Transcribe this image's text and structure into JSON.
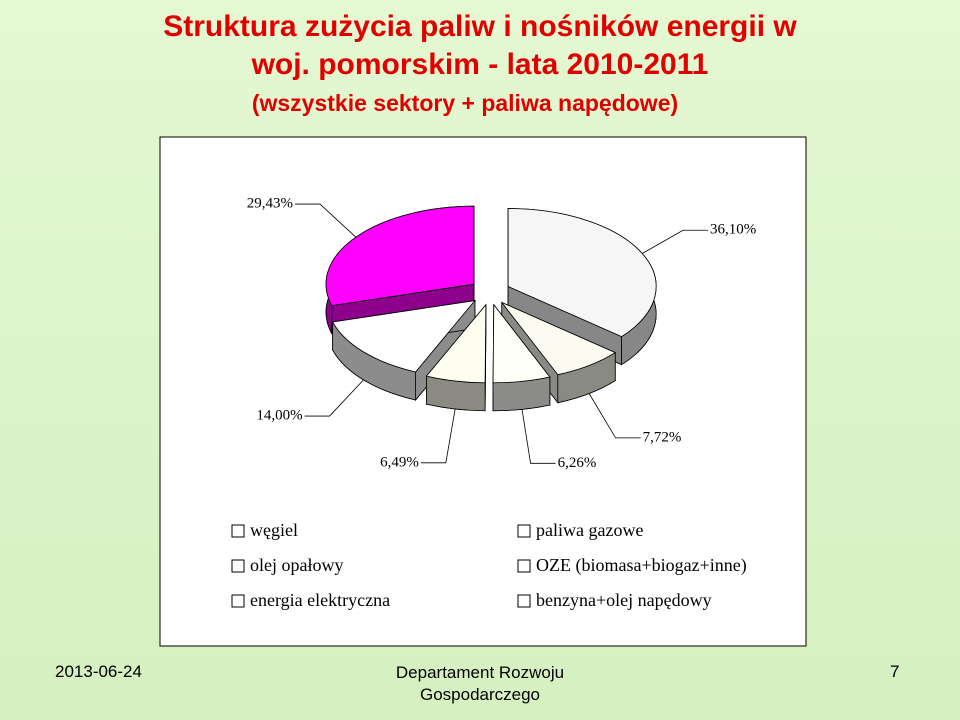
{
  "chart_data": {
    "type": "pie",
    "title": "Struktura zużycia paliw i nośników energii w woj. pomorskim - lata 2010-2011",
    "subtitle": "(wszystkie sektory + paliwa napędowe)",
    "categories": [
      "węgiel",
      "paliwa gazowe",
      "olej opałowy",
      "OZE (biomasa+biogaz+inne)",
      "energia elektryczna",
      "benzyna+olej napędowy"
    ],
    "values": [
      36.1,
      7.72,
      6.26,
      6.49,
      14.0,
      29.43
    ],
    "value_labels": [
      "36,10%",
      "7,72%",
      "6,26%",
      "6,49%",
      "14,00%",
      "29,43%"
    ],
    "colors": [
      "#f6f6f6",
      "#fbfbf2",
      "#fffff8",
      "#fdfdf0",
      "#ffffff",
      "#ff00ff"
    ]
  },
  "footer": {
    "date": "2013-06-24",
    "department": "Departament Rozwoju Gospodarczego",
    "page": "7"
  }
}
